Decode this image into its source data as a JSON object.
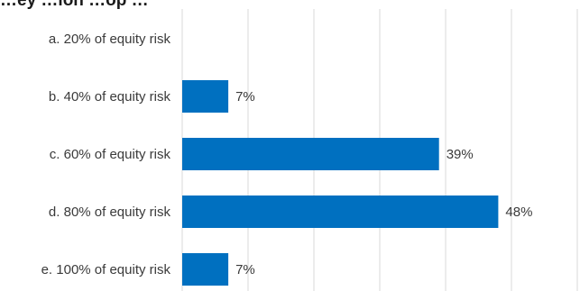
{
  "chart_data": {
    "type": "bar",
    "orientation": "horizontal",
    "title": "…ey …ion …op …",
    "categories": [
      "a. 20% of equity risk",
      "b. 40% of equity risk",
      "c. 60% of equity risk",
      "d. 80% of equity risk",
      "e. 100% of equity risk"
    ],
    "values": [
      0,
      7,
      39,
      48,
      7
    ],
    "value_labels": [
      "",
      "7%",
      "39%",
      "48%",
      "7%"
    ],
    "xlim": [
      0,
      60
    ],
    "grid": true,
    "bar_color": "#0070c0",
    "gridline_color": "#d9d9d9",
    "text_color": "#3a3a3a"
  }
}
